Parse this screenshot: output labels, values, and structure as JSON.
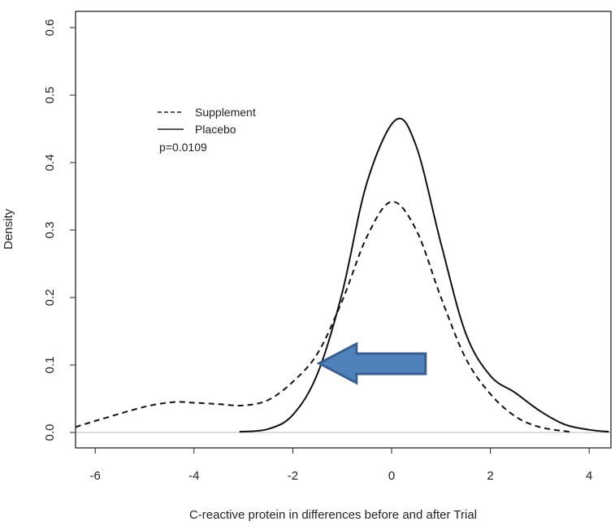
{
  "chart_data": {
    "type": "line",
    "title": "",
    "xlabel": "C-reactive protein in differences before and after Trial",
    "ylabel": "Density",
    "xlim": [
      -6.4,
      4.4
    ],
    "ylim": [
      -0.025,
      0.62
    ],
    "xticks": [
      -6,
      -4,
      -2,
      0,
      2,
      4
    ],
    "yticks": [
      0.0,
      0.1,
      0.2,
      0.3,
      0.4,
      0.5,
      0.6
    ],
    "xtick_labels": [
      "-6",
      "-4",
      "-2",
      "0",
      "2",
      "4"
    ],
    "ytick_labels": [
      "0.0",
      "0.1",
      "0.2",
      "0.3",
      "0.4",
      "0.5",
      "0.6"
    ],
    "grid": false,
    "legend_position": "top-left",
    "series": [
      {
        "name": "Supplement",
        "style": "dashed",
        "x": [
          -6.4,
          -6,
          -5,
          -4.4,
          -4,
          -3.5,
          -3,
          -2.5,
          -2,
          -1.5,
          -1,
          -0.5,
          0,
          0.5,
          1,
          1.5,
          2,
          2.5,
          3,
          3.6
        ],
        "y": [
          0.008,
          0.017,
          0.038,
          0.045,
          0.044,
          0.042,
          0.04,
          0.048,
          0.075,
          0.117,
          0.195,
          0.29,
          0.342,
          0.3,
          0.2,
          0.11,
          0.057,
          0.024,
          0.008,
          0.001
        ]
      },
      {
        "name": "Placebo",
        "style": "solid",
        "x": [
          -3.08,
          -2.5,
          -2,
          -1.5,
          -1,
          -0.5,
          0.08,
          0.5,
          1,
          1.5,
          2,
          2.5,
          3,
          3.5,
          4,
          4.4
        ],
        "y": [
          0.001,
          0.005,
          0.026,
          0.087,
          0.207,
          0.37,
          0.463,
          0.424,
          0.28,
          0.147,
          0.084,
          0.059,
          0.032,
          0.012,
          0.004,
          0.001
        ]
      }
    ],
    "annotations": [
      "p=0.0109"
    ],
    "arrow": {
      "points_to_x": -1.5,
      "at_y": 0.1,
      "color": "#4f81bd",
      "edge_color": "#3a5f8f"
    }
  }
}
